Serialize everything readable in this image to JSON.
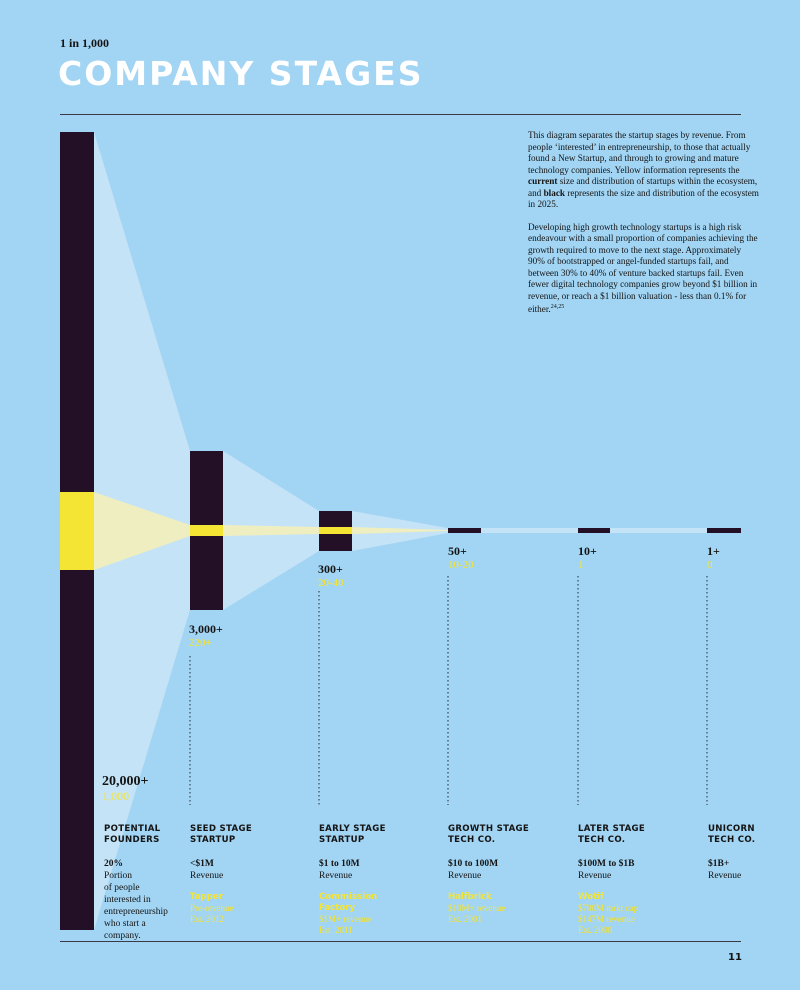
{
  "header": {
    "kicker": "1 in 1,000",
    "title": "COMPANY STAGES"
  },
  "intro": {
    "p1_a": "This diagram separates the startup stages by revenue. From people ‘interested’ in entrepreneurship, to those that actually found a New Startup, and through to growing and mature technology companies. Yellow information represents the ",
    "p1_current": "current",
    "p1_b": " size and distribution of startups within the ecosystem, and ",
    "p1_black": "black",
    "p1_c": " represents the size and distribution of the ecosystem in 2025.",
    "p2": "Developing high growth technology startups is a high risk endeavour with a small proportion of companies achieving the growth required to move to the next stage. Approximately 90% of bootstrapped or angel-funded startups fail, and between 30% to 40% of venture backed startups fail. Even fewer digital technology companies grow beyond $1 billion in revenue, or reach a $1 billion valuation - less than 0.1% for either.",
    "p2_sup": "24,25"
  },
  "colors": {
    "background": "#a2d4f3",
    "future": "#231027",
    "current": "#f4e534",
    "cone_future": "#c4e3f7",
    "cone_current": "#efeec0"
  },
  "stages": [
    {
      "id": "founders",
      "count": "20,000+",
      "current": "1,000",
      "name": "POTENTIAL\nFOUNDERS",
      "rev_bold": "20%",
      "rev_text": "Portion\nof people\ninterested in\nentrepreneurship\nwho start a\ncompany.",
      "example_name": "",
      "example_text": ""
    },
    {
      "id": "seed",
      "count": "3,000+",
      "current": "220+",
      "name": "SEED STAGE\nSTARTUP",
      "rev_bold": "<$1M",
      "rev_text": "Revenue",
      "example_name": "Tappеr",
      "example_text": "Pre-revenue\nEst. 2012"
    },
    {
      "id": "early",
      "count": "300+",
      "current": "20-40",
      "name": "EARLY STAGE\nSTARTUP",
      "rev_bold": "$1 to 10M",
      "rev_text": "Revenue",
      "example_name": "Commission\nFactory",
      "example_text": "$1M+ revenue\nEst. 2011"
    },
    {
      "id": "growth",
      "count": "50+",
      "current": "10-20",
      "name": "GROWTH STAGE\nTECH CO.",
      "rev_bold": "$10 to 100M",
      "rev_text": "Revenue",
      "example_name": "Halfbrick",
      "example_text": "$10M+ revenue\nEst. 2001"
    },
    {
      "id": "later",
      "count": "10+",
      "current": "1",
      "name": "LATER STAGE\nTECH CO.",
      "rev_bold": "$100M to $1B",
      "rev_text": "Revenue",
      "example_name": "Wotif",
      "example_text": "$700M mrkt cap\n$147M revenue\nEst. 2000"
    },
    {
      "id": "unicorn",
      "count": "1+",
      "current": "0",
      "name": "UNICORN\nTECH CO.",
      "rev_bold": "$1B+",
      "rev_text": "Revenue",
      "example_name": "",
      "example_text": ""
    }
  ],
  "footer": {
    "page": "11"
  }
}
